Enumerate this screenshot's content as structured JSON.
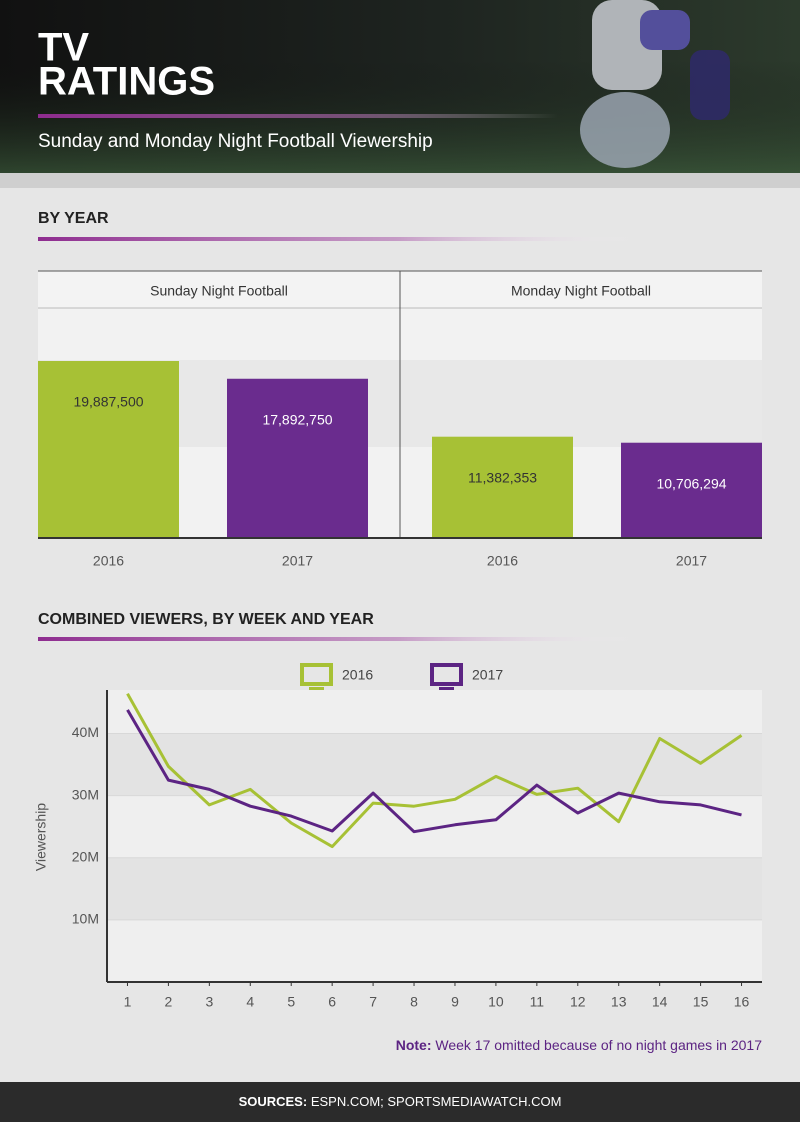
{
  "header": {
    "title_lines": [
      "TV",
      "RATINGS"
    ],
    "subtitle": "Sunday and Monday Night Football Viewership"
  },
  "chart_data": [
    {
      "type": "grouped-bar",
      "title": "BY YEAR",
      "groups": [
        {
          "name": "Sunday Night Football",
          "categories": [
            "2016",
            "2017"
          ],
          "values": [
            19887500,
            17892750
          ],
          "value_labels": [
            "19,887,500",
            "17,892,750"
          ]
        },
        {
          "name": "Monday Night Football",
          "categories": [
            "2016",
            "2017"
          ],
          "values": [
            11382353,
            10706294
          ],
          "value_labels": [
            "11,382,353",
            "10,706,294"
          ]
        }
      ],
      "colors": [
        "#a7c135",
        "#6a2c8e"
      ],
      "ylim": [
        0,
        30000000
      ]
    },
    {
      "type": "line",
      "title": "COMBINED VIEWERS, BY WEEK AND YEAR",
      "y_label": "Viewership",
      "x": [
        1,
        2,
        3,
        4,
        5,
        6,
        7,
        8,
        9,
        10,
        11,
        12,
        13,
        14,
        15,
        16
      ],
      "series": [
        {
          "name": "2016",
          "color": "#a7c135",
          "values": [
            46400000,
            34700000,
            28500000,
            31000000,
            25600000,
            21800000,
            28800000,
            28300000,
            29400000,
            33100000,
            30200000,
            31200000,
            25800000,
            39200000,
            35200000,
            39700000
          ]
        },
        {
          "name": "2017",
          "color": "#5c2483",
          "values": [
            43800000,
            32500000,
            31000000,
            28300000,
            26700000,
            24300000,
            30400000,
            24200000,
            25300000,
            26100000,
            31700000,
            27200000,
            30400000,
            29000000,
            28500000,
            26900000
          ]
        }
      ],
      "xlim": [
        0.5,
        16.5
      ],
      "xticks": [
        1,
        2,
        3,
        4,
        5,
        6,
        7,
        8,
        9,
        10,
        11,
        12,
        13,
        14,
        15,
        16
      ],
      "ylim": [
        0,
        47000000
      ],
      "yticks": [
        {
          "value": 10000000,
          "label": "10M"
        },
        {
          "value": 20000000,
          "label": "20M"
        },
        {
          "value": 30000000,
          "label": "30M"
        },
        {
          "value": 40000000,
          "label": "40M"
        }
      ],
      "grid": true,
      "legend": "top",
      "note": {
        "label": "Note:",
        "text": "Week 17 omitted because of no night games in 2017"
      }
    }
  ],
  "footer": {
    "label": "SOURCES:",
    "text": "ESPN.COM; SPORTSMEDIAWATCH.COM"
  }
}
